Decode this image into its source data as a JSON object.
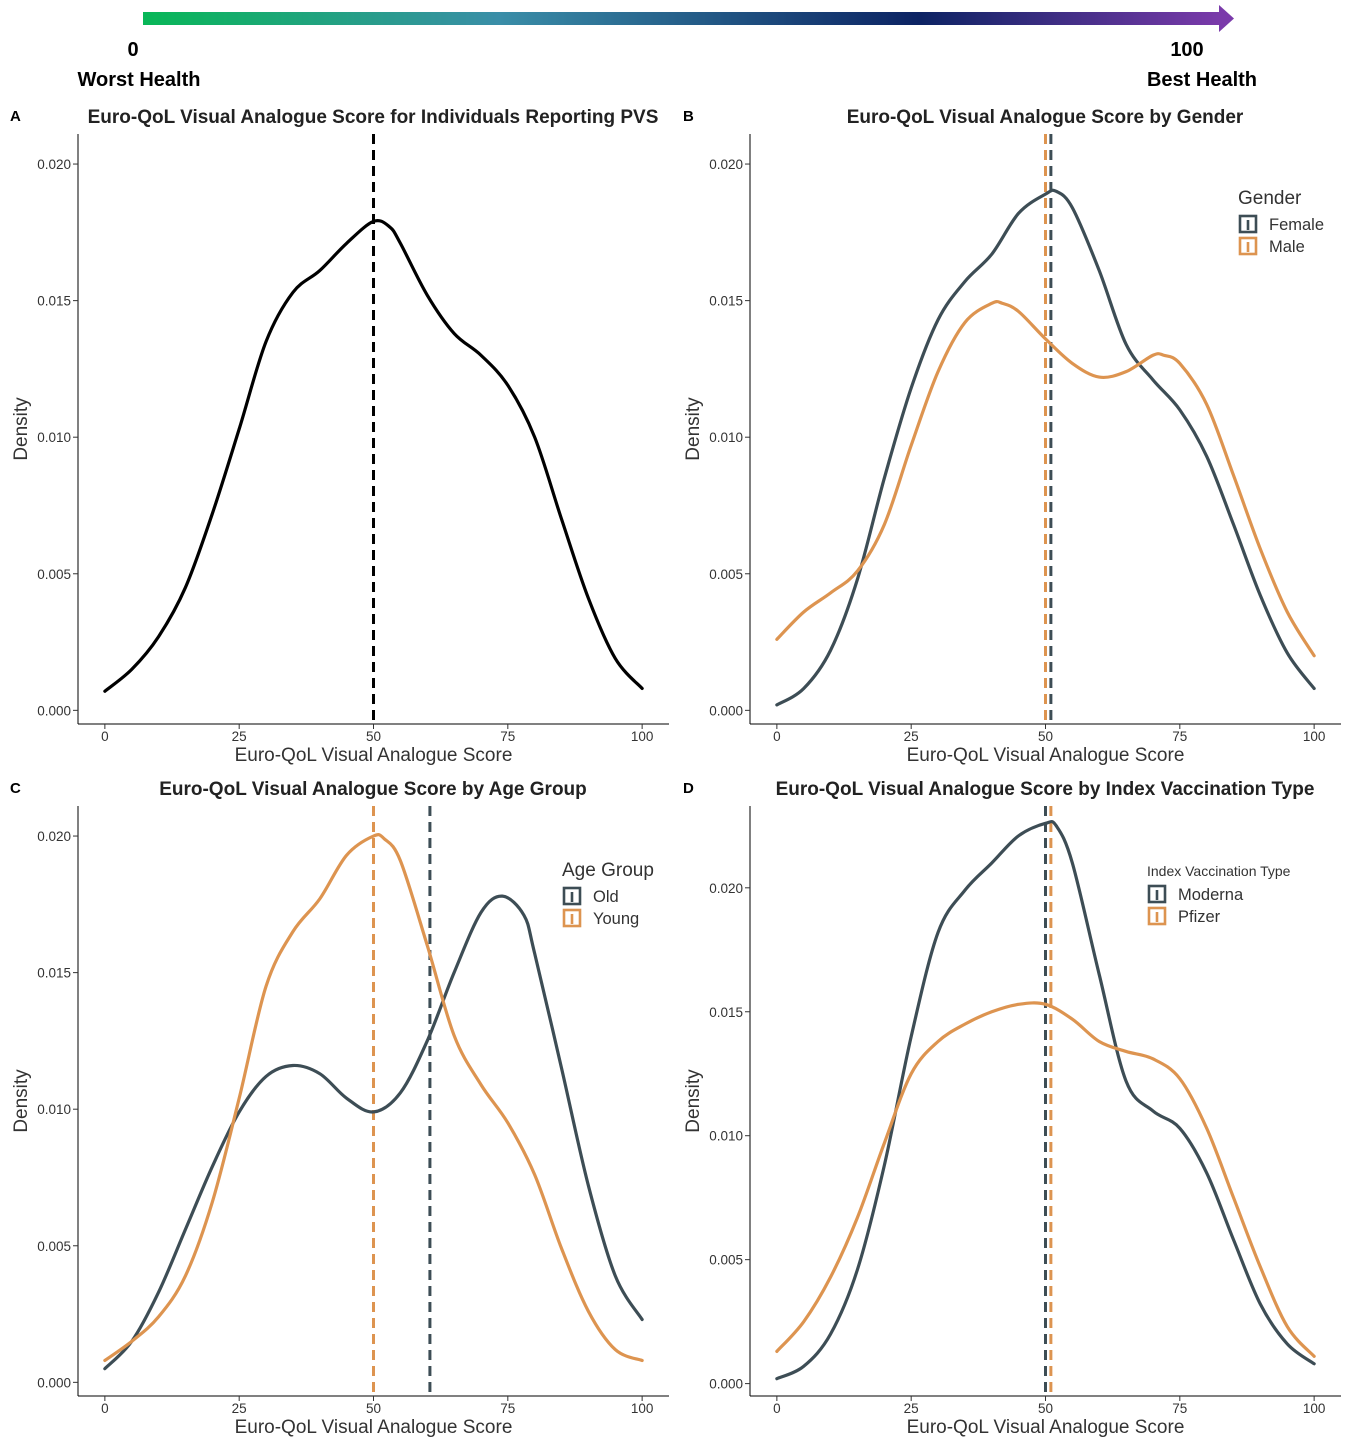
{
  "scale_bar": {
    "left_value": "0",
    "left_label": "Worst Health",
    "right_value": "100",
    "right_label": "Best Health",
    "gradient_colors": [
      "#08b757",
      "#3a8ea8",
      "#0c2363",
      "#7a3aaa"
    ]
  },
  "colors": {
    "dark_series": "#3d4d55",
    "orange_series": "#dd9450",
    "single_series": "#000000"
  },
  "chart_data": [
    {
      "panel_label": "A",
      "type": "line",
      "title": "Euro-QoL Visual Analogue Score for Individuals Reporting PVS",
      "xlabel": "Euro-QoL Visual Analogue Score",
      "ylabel": "Density",
      "xlim": [
        -5,
        105
      ],
      "ylim": [
        -0.0005,
        0.0211
      ],
      "xticks": [
        0,
        25,
        50,
        75,
        100
      ],
      "xtick_labels": [
        "0",
        "25",
        "50",
        "75",
        "100"
      ],
      "yticks": [
        0,
        0.005,
        0.01,
        0.015,
        0.02
      ],
      "ytick_labels": [
        "0.000",
        "0.005",
        "0.010",
        "0.015",
        "0.020"
      ],
      "legend": null,
      "series": [
        {
          "color": "#000000",
          "mean": 50,
          "points": [
            [
              0,
              0.0007
            ],
            [
              5,
              0.0015
            ],
            [
              10,
              0.0027
            ],
            [
              15,
              0.0045
            ],
            [
              20,
              0.0072
            ],
            [
              25,
              0.0103
            ],
            [
              30,
              0.0135
            ],
            [
              35,
              0.0153
            ],
            [
              40,
              0.0161
            ],
            [
              45,
              0.0171
            ],
            [
              50,
              0.0179
            ],
            [
              53,
              0.0177
            ],
            [
              55,
              0.0171
            ],
            [
              60,
              0.0152
            ],
            [
              65,
              0.0138
            ],
            [
              70,
              0.013
            ],
            [
              75,
              0.0119
            ],
            [
              80,
              0.01
            ],
            [
              85,
              0.007
            ],
            [
              90,
              0.0041
            ],
            [
              95,
              0.0019
            ],
            [
              100,
              0.0008
            ]
          ]
        }
      ]
    },
    {
      "panel_label": "B",
      "type": "line",
      "title": "Euro-QoL Visual Analogue Score by Gender",
      "xlabel": "Euro-QoL Visual Analogue Score",
      "ylabel": "Density",
      "xlim": [
        -5,
        105
      ],
      "ylim": [
        -0.0005,
        0.0211
      ],
      "xticks": [
        0,
        25,
        50,
        75,
        100
      ],
      "xtick_labels": [
        "0",
        "25",
        "50",
        "75",
        "100"
      ],
      "yticks": [
        0,
        0.005,
        0.01,
        0.015,
        0.02
      ],
      "ytick_labels": [
        "0.000",
        "0.005",
        "0.010",
        "0.015",
        "0.020"
      ],
      "legend": {
        "title": "Gender",
        "position": "top-right",
        "small_title": false
      },
      "series": [
        {
          "name": "Female",
          "color": "#3d4d55",
          "mean": 51,
          "points": [
            [
              0,
              0.0002
            ],
            [
              5,
              0.0008
            ],
            [
              10,
              0.0022
            ],
            [
              15,
              0.0048
            ],
            [
              20,
              0.0085
            ],
            [
              25,
              0.0118
            ],
            [
              30,
              0.0143
            ],
            [
              35,
              0.0157
            ],
            [
              40,
              0.0167
            ],
            [
              45,
              0.0182
            ],
            [
              50,
              0.0189
            ],
            [
              52,
              0.019
            ],
            [
              55,
              0.0184
            ],
            [
              60,
              0.0161
            ],
            [
              65,
              0.0134
            ],
            [
              70,
              0.0121
            ],
            [
              75,
              0.011
            ],
            [
              80,
              0.0093
            ],
            [
              85,
              0.0068
            ],
            [
              90,
              0.0042
            ],
            [
              95,
              0.0021
            ],
            [
              100,
              0.0008
            ]
          ]
        },
        {
          "name": "Male",
          "color": "#dd9450",
          "mean": 50,
          "points": [
            [
              0,
              0.0026
            ],
            [
              5,
              0.0036
            ],
            [
              10,
              0.0043
            ],
            [
              15,
              0.0051
            ],
            [
              20,
              0.0068
            ],
            [
              25,
              0.0097
            ],
            [
              30,
              0.0124
            ],
            [
              35,
              0.0142
            ],
            [
              40,
              0.0149
            ],
            [
              42,
              0.0149
            ],
            [
              45,
              0.0146
            ],
            [
              50,
              0.0136
            ],
            [
              55,
              0.0127
            ],
            [
              60,
              0.0122
            ],
            [
              65,
              0.0124
            ],
            [
              70,
              0.013
            ],
            [
              72,
              0.013
            ],
            [
              75,
              0.0127
            ],
            [
              80,
              0.0112
            ],
            [
              85,
              0.0086
            ],
            [
              90,
              0.0059
            ],
            [
              95,
              0.0036
            ],
            [
              100,
              0.002
            ]
          ]
        }
      ]
    },
    {
      "panel_label": "C",
      "type": "line",
      "title": "Euro-QoL Visual Analogue Score by Age Group",
      "xlabel": "Euro-QoL Visual Analogue Score",
      "ylabel": "Density",
      "xlim": [
        -5,
        105
      ],
      "ylim": [
        -0.0005,
        0.0211
      ],
      "xticks": [
        0,
        25,
        50,
        75,
        100
      ],
      "xtick_labels": [
        "0",
        "25",
        "50",
        "75",
        "100"
      ],
      "yticks": [
        0,
        0.005,
        0.01,
        0.015,
        0.02
      ],
      "ytick_labels": [
        "0.000",
        "0.005",
        "0.010",
        "0.015",
        "0.020"
      ],
      "legend": {
        "title": "Age Group",
        "position": "top-right",
        "small_title": false
      },
      "series": [
        {
          "name": "Old",
          "color": "#3d4d55",
          "mean": 60.5,
          "points": [
            [
              0,
              0.0005
            ],
            [
              5,
              0.0015
            ],
            [
              10,
              0.0033
            ],
            [
              15,
              0.0056
            ],
            [
              20,
              0.0079
            ],
            [
              25,
              0.0099
            ],
            [
              30,
              0.0112
            ],
            [
              35,
              0.0116
            ],
            [
              40,
              0.0113
            ],
            [
              45,
              0.0104
            ],
            [
              50,
              0.0099
            ],
            [
              55,
              0.0106
            ],
            [
              60,
              0.0125
            ],
            [
              65,
              0.015
            ],
            [
              70,
              0.0172
            ],
            [
              74,
              0.0178
            ],
            [
              78,
              0.0171
            ],
            [
              80,
              0.0157
            ],
            [
              85,
              0.0115
            ],
            [
              90,
              0.0072
            ],
            [
              95,
              0.0039
            ],
            [
              100,
              0.0023
            ]
          ]
        },
        {
          "name": "Young",
          "color": "#dd9450",
          "mean": 50,
          "points": [
            [
              0,
              0.0008
            ],
            [
              5,
              0.0015
            ],
            [
              10,
              0.0024
            ],
            [
              15,
              0.0039
            ],
            [
              20,
              0.0066
            ],
            [
              25,
              0.0104
            ],
            [
              30,
              0.0145
            ],
            [
              35,
              0.0165
            ],
            [
              40,
              0.0177
            ],
            [
              45,
              0.0193
            ],
            [
              50,
              0.02
            ],
            [
              52,
              0.0199
            ],
            [
              55,
              0.0191
            ],
            [
              60,
              0.016
            ],
            [
              65,
              0.0127
            ],
            [
              70,
              0.0109
            ],
            [
              75,
              0.0095
            ],
            [
              80,
              0.0076
            ],
            [
              85,
              0.0049
            ],
            [
              90,
              0.0026
            ],
            [
              95,
              0.0012
            ],
            [
              100,
              0.0008
            ]
          ]
        }
      ]
    },
    {
      "panel_label": "D",
      "type": "line",
      "title": "Euro-QoL Visual Analogue Score by Index Vaccination Type",
      "xlabel": "Euro-QoL Visual Analogue Score",
      "ylabel": "Density",
      "xlim": [
        -5,
        105
      ],
      "ylim": [
        -0.0005,
        0.0233
      ],
      "xticks": [
        0,
        25,
        50,
        75,
        100
      ],
      "xtick_labels": [
        "0",
        "25",
        "50",
        "75",
        "100"
      ],
      "yticks": [
        0,
        0.005,
        0.01,
        0.015,
        0.02
      ],
      "ytick_labels": [
        "0.000",
        "0.005",
        "0.010",
        "0.015",
        "0.020"
      ],
      "legend": {
        "title": "Index Vaccination Type",
        "position": "top-right",
        "small_title": true
      },
      "series": [
        {
          "name": "Moderna",
          "color": "#3d4d55",
          "mean": 50,
          "points": [
            [
              0,
              0.0002
            ],
            [
              5,
              0.0007
            ],
            [
              10,
              0.002
            ],
            [
              15,
              0.0046
            ],
            [
              20,
              0.0088
            ],
            [
              25,
              0.014
            ],
            [
              30,
              0.0182
            ],
            [
              35,
              0.0199
            ],
            [
              40,
              0.021
            ],
            [
              45,
              0.0221
            ],
            [
              50,
              0.0226
            ],
            [
              52,
              0.0225
            ],
            [
              55,
              0.021
            ],
            [
              60,
              0.0165
            ],
            [
              65,
              0.0122
            ],
            [
              70,
              0.011
            ],
            [
              75,
              0.0103
            ],
            [
              80,
              0.0085
            ],
            [
              85,
              0.0058
            ],
            [
              90,
              0.0032
            ],
            [
              95,
              0.0016
            ],
            [
              100,
              0.0008
            ]
          ]
        },
        {
          "name": "Pfizer",
          "color": "#dd9450",
          "mean": 51,
          "points": [
            [
              0,
              0.0013
            ],
            [
              5,
              0.0025
            ],
            [
              10,
              0.0043
            ],
            [
              15,
              0.0067
            ],
            [
              20,
              0.0097
            ],
            [
              25,
              0.0125
            ],
            [
              30,
              0.0138
            ],
            [
              35,
              0.0145
            ],
            [
              40,
              0.015
            ],
            [
              45,
              0.0153
            ],
            [
              50,
              0.0153
            ],
            [
              55,
              0.0147
            ],
            [
              60,
              0.0138
            ],
            [
              65,
              0.0134
            ],
            [
              70,
              0.0131
            ],
            [
              75,
              0.0123
            ],
            [
              80,
              0.0103
            ],
            [
              85,
              0.0075
            ],
            [
              90,
              0.0047
            ],
            [
              95,
              0.0023
            ],
            [
              100,
              0.0011
            ]
          ]
        }
      ]
    }
  ]
}
